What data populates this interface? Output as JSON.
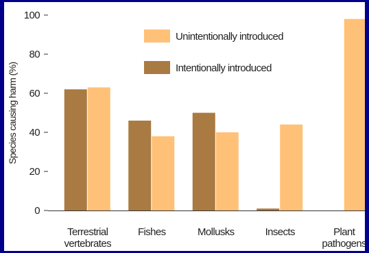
{
  "chart_data": {
    "type": "bar",
    "ylabel": "Species causing harm (%)",
    "xlabel": "",
    "ylim": [
      0,
      100
    ],
    "yticks": [
      0,
      20,
      40,
      60,
      80,
      100
    ],
    "categories": [
      [
        "Terrestrial",
        "vertebrates"
      ],
      [
        "Fishes"
      ],
      [
        "Mollusks"
      ],
      [
        "Insects"
      ],
      [
        "Plant",
        "pathogens"
      ]
    ],
    "series": [
      {
        "name": "Intentionally introduced",
        "color": "#a97a42",
        "values": [
          62,
          46,
          50,
          1,
          0
        ]
      },
      {
        "name": "Unintentionally introduced",
        "color": "#ffc177",
        "values": [
          63,
          38,
          40,
          44,
          98
        ]
      }
    ],
    "legend_order": [
      "Unintentionally introduced",
      "Intentionally introduced"
    ],
    "grid": false,
    "legend_position": "top-center"
  }
}
